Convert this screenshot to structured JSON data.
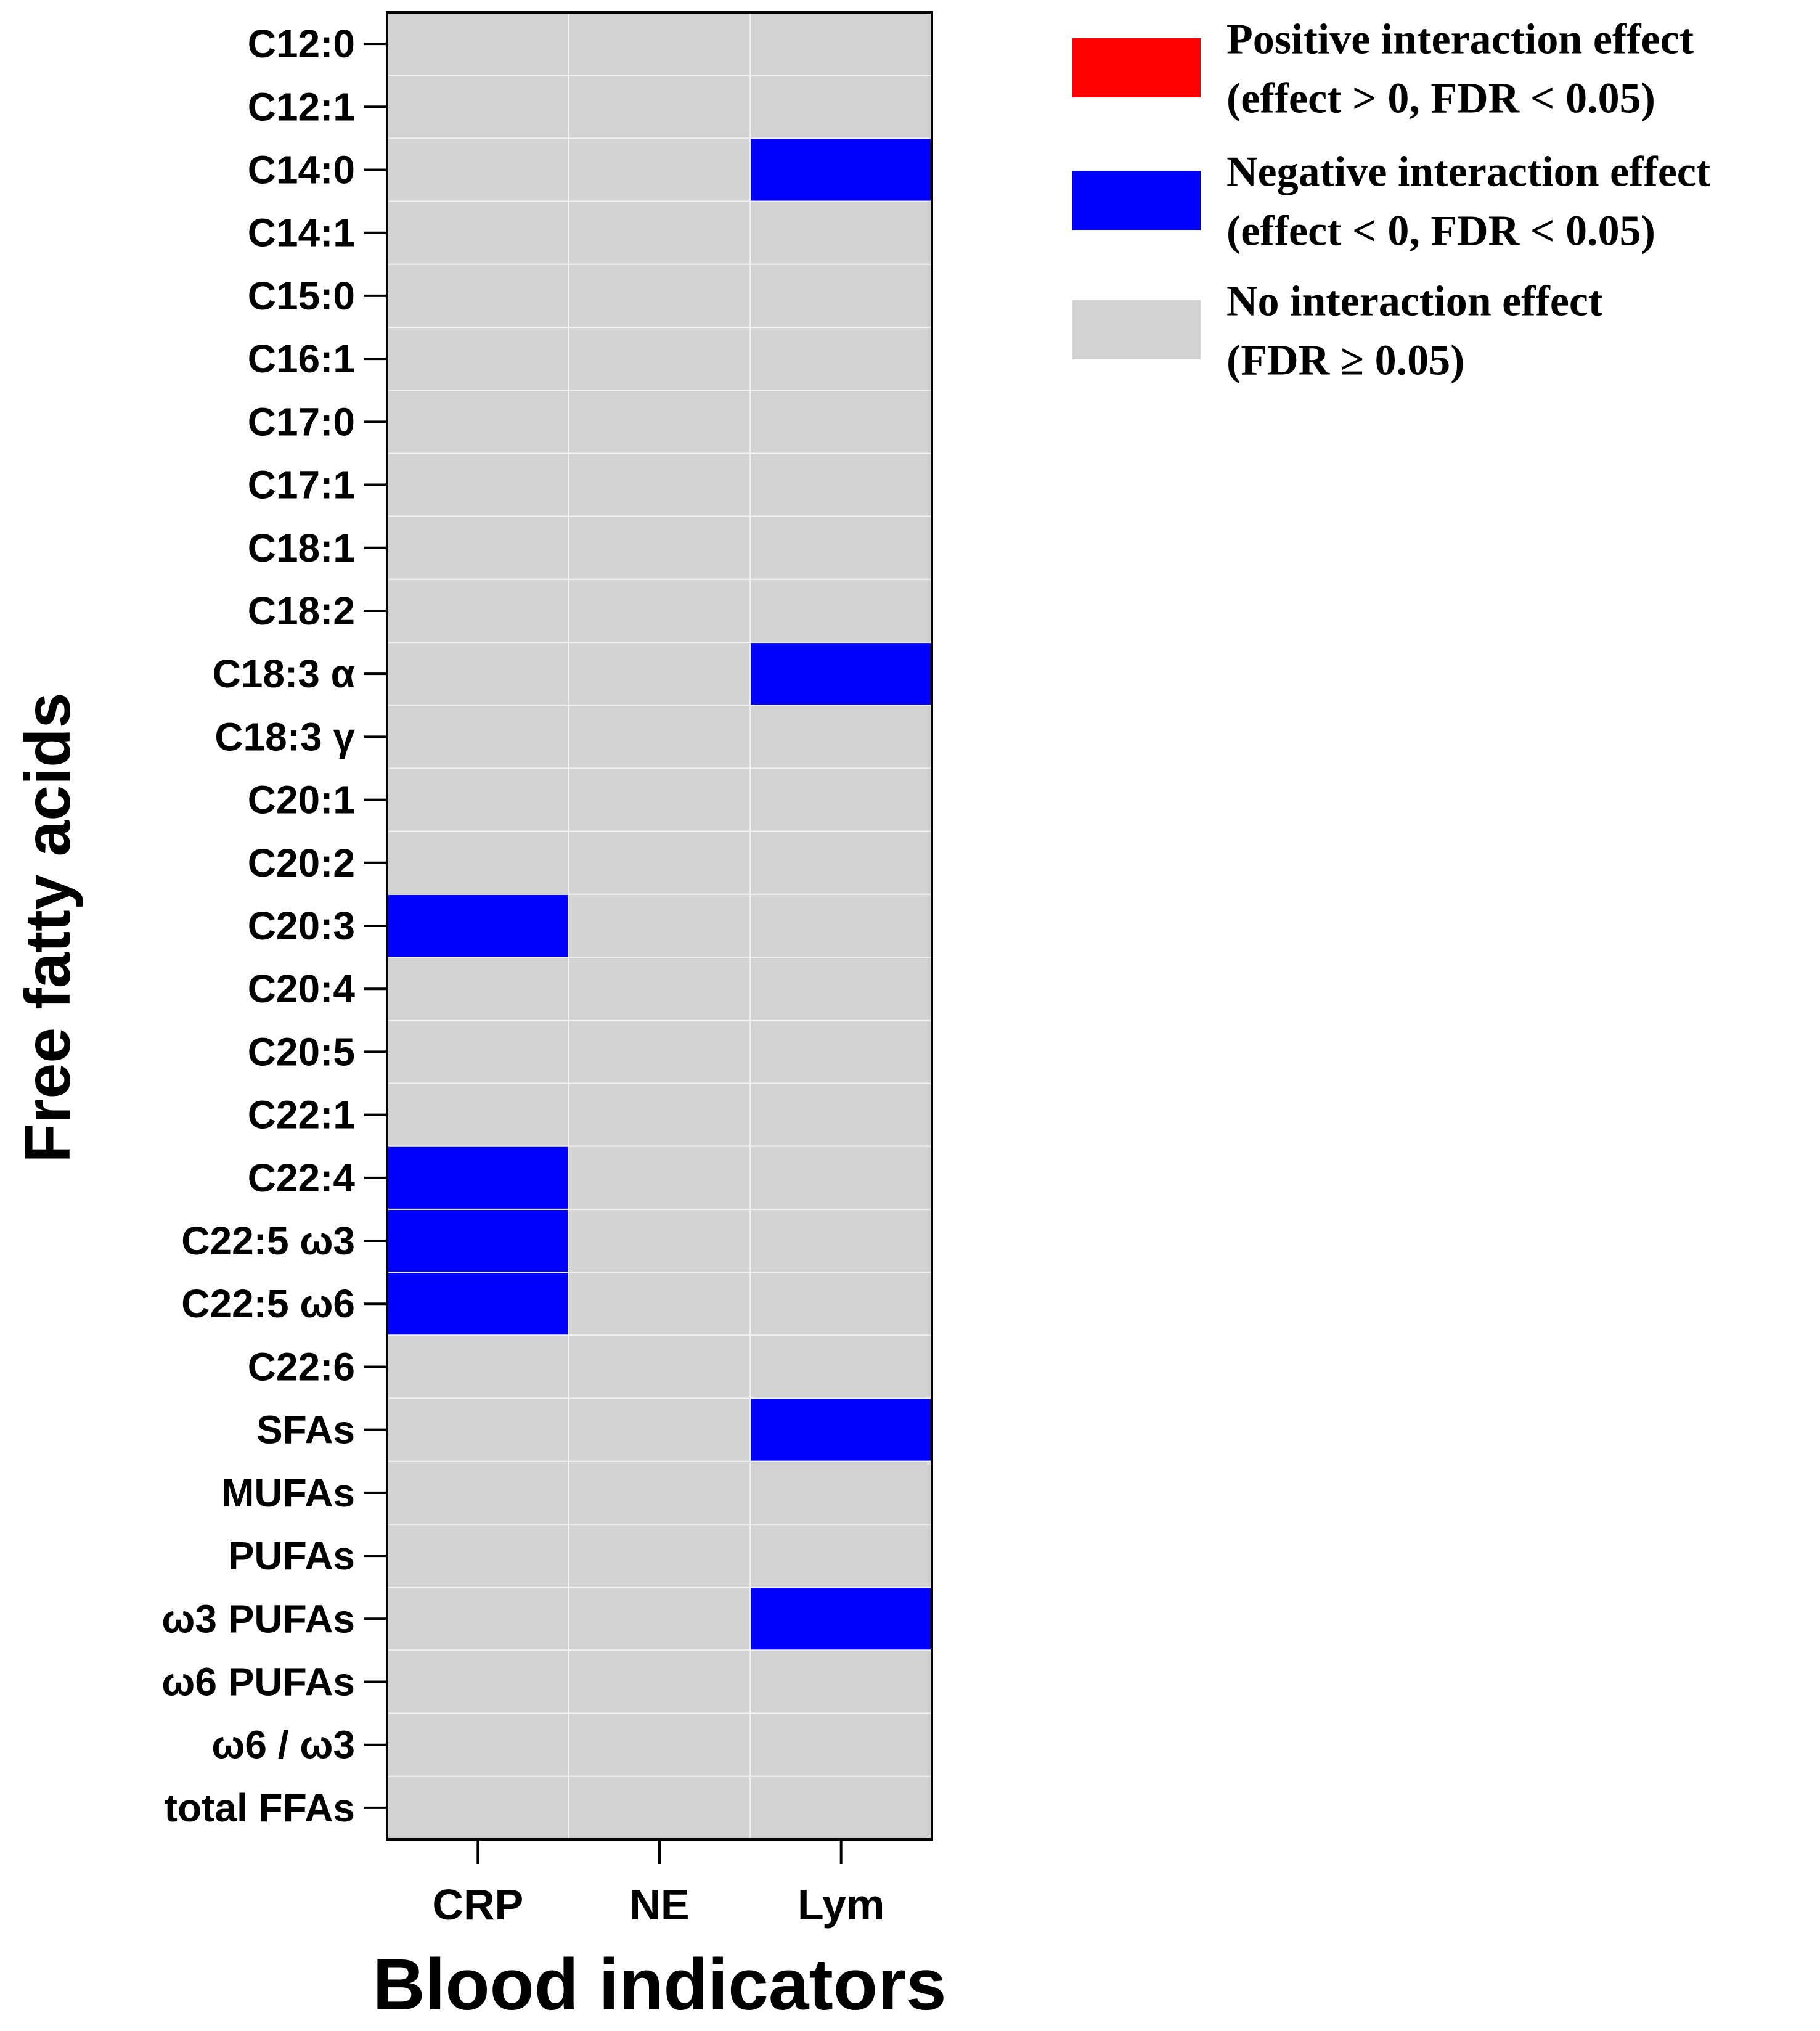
{
  "chart_data": {
    "type": "heatmap",
    "title": "",
    "xlabel": "Blood indicators",
    "ylabel": "Free fatty acids",
    "columns": [
      "CRP",
      "NE",
      "Lym"
    ],
    "rows": [
      "C12:0",
      "C12:1",
      "C14:0",
      "C14:1",
      "C15:0",
      "C16:1",
      "C17:0",
      "C17:1",
      "C18:1",
      "C18:2",
      "C18:3 α",
      "C18:3 γ",
      "C20:1",
      "C20:2",
      "C20:3",
      "C20:4",
      "C20:5",
      "C22:1",
      "C22:4",
      "C22:5 ω3",
      "C22:5 ω6",
      "C22:6",
      "SFAs",
      "MUFAs",
      "PUFAs",
      "ω3 PUFAs",
      "ω6 PUFAs",
      "ω6 / ω3",
      "total FFAs"
    ],
    "values": [
      [
        0,
        0,
        0
      ],
      [
        0,
        0,
        0
      ],
      [
        0,
        0,
        -1
      ],
      [
        0,
        0,
        0
      ],
      [
        0,
        0,
        0
      ],
      [
        0,
        0,
        0
      ],
      [
        0,
        0,
        0
      ],
      [
        0,
        0,
        0
      ],
      [
        0,
        0,
        0
      ],
      [
        0,
        0,
        0
      ],
      [
        0,
        0,
        -1
      ],
      [
        0,
        0,
        0
      ],
      [
        0,
        0,
        0
      ],
      [
        0,
        0,
        0
      ],
      [
        -1,
        0,
        0
      ],
      [
        0,
        0,
        0
      ],
      [
        0,
        0,
        0
      ],
      [
        0,
        0,
        0
      ],
      [
        -1,
        0,
        0
      ],
      [
        -1,
        0,
        0
      ],
      [
        -1,
        0,
        0
      ],
      [
        0,
        0,
        0
      ],
      [
        0,
        0,
        -1
      ],
      [
        0,
        0,
        0
      ],
      [
        0,
        0,
        0
      ],
      [
        0,
        0,
        -1
      ],
      [
        0,
        0,
        0
      ],
      [
        0,
        0,
        0
      ],
      [
        0,
        0,
        0
      ]
    ],
    "value_meaning": {
      "1": "positive",
      "-1": "negative",
      "0": "none"
    },
    "legend": [
      {
        "key": "positive",
        "color": "#ff0000",
        "line1": "Positive interaction effect",
        "line2": "(effect > 0, FDR < 0.05)"
      },
      {
        "key": "negative",
        "color": "#0000ff",
        "line1": "Negative interaction effect",
        "line2": "(effect < 0, FDR < 0.05)"
      },
      {
        "key": "none",
        "color": "#d3d3d3",
        "line1": "No interaction effect",
        "line2": "(FDR ≥ 0.05)"
      }
    ],
    "legend_position": "top-right"
  }
}
